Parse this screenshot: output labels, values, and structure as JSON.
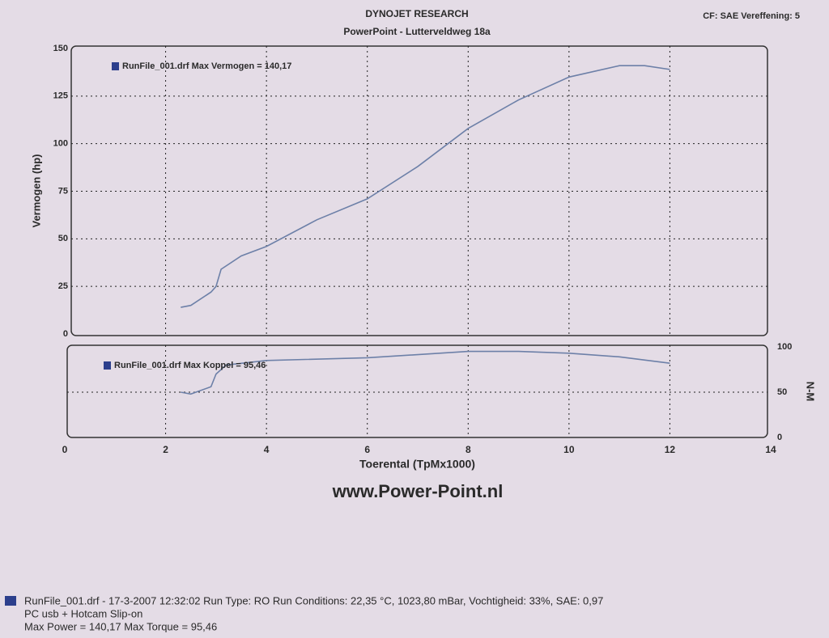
{
  "header": {
    "title": "DYNOJET RESEARCH",
    "subtitle": "PowerPoint - Lutterveldweg 18a",
    "settings": "CF: SAE Vereffening: 5"
  },
  "chart_data": [
    {
      "type": "line",
      "ylabel": "Vermogen (hp)",
      "xlim": [
        0,
        14
      ],
      "xticks": [
        2,
        4,
        6,
        8,
        10,
        12
      ],
      "ylim": [
        0,
        150
      ],
      "yticks": [
        0,
        25,
        50,
        75,
        100,
        125,
        150
      ],
      "grid": true,
      "x": [
        2.3,
        2.5,
        2.9,
        3.0,
        3.1,
        3.5,
        4.0,
        5.0,
        6.0,
        7.0,
        8.0,
        9.0,
        10.0,
        11.0,
        11.5,
        12.0
      ],
      "series": [
        {
          "name": "RunFile_001.drf Max Vermogen = 140,17",
          "color": "#6d80a8",
          "values": [
            14,
            15,
            22,
            25,
            34,
            41,
            46,
            60,
            71,
            88,
            108,
            123,
            135,
            141,
            141,
            139
          ]
        }
      ]
    },
    {
      "type": "line",
      "ylabel": "N-M",
      "xlabel": "Toerental (TpMx1000)",
      "xlim": [
        0,
        14
      ],
      "xticks": [
        0,
        2,
        4,
        6,
        8,
        10,
        12,
        14
      ],
      "ylim": [
        0,
        100
      ],
      "yticks": [
        0,
        50,
        100
      ],
      "grid": true,
      "x": [
        2.3,
        2.5,
        2.9,
        3.0,
        3.2,
        4.0,
        6.0,
        8.0,
        9.0,
        10.0,
        11.0,
        12.0
      ],
      "series": [
        {
          "name": "RunFile_001.drf Max Koppel = 95,46",
          "color": "#6d80a8",
          "values": [
            50,
            48,
            56,
            70,
            80,
            85,
            88,
            95,
            95,
            93,
            89,
            82
          ]
        }
      ]
    }
  ],
  "website": "www.Power-Point.nl",
  "footer": {
    "line1": "RunFile_001.drf - 17-3-2007 12:32:02  Run Type: RO  Run Conditions: 22,35 °C, 1023,80 mBar,  Vochtigheid: 33%, SAE: 0,97",
    "line2": "PC usb + Hotcam Slip-on",
    "line3": "Max Power = 140,17  Max Torque = 95,46"
  }
}
